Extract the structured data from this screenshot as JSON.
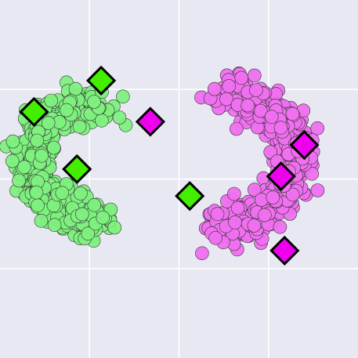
{
  "chart_data": {
    "type": "scatter",
    "title": "",
    "xlabel": "",
    "ylabel": "",
    "xlim": [
      -2.0,
      2.0
    ],
    "ylim": [
      -1.6,
      2.4
    ],
    "grid": true,
    "legend": "none",
    "x_gridlines": [
      -1.0,
      0.0,
      1.0
    ],
    "y_gridlines": [
      -0.6,
      0.4,
      1.4
    ],
    "colors": {
      "background": "#e8e8f2",
      "grid": "#ffffff",
      "class_a": "#7ef07e",
      "class_b": "#f070f0",
      "class_a_centroid": "#44ee00",
      "class_b_centroid": "#ee00ee",
      "edge": "#333333",
      "centroid_edge": "#000000"
    },
    "series": [
      {
        "name": "class-a",
        "shape": "two-moons-upper",
        "arc_center": [
          -0.85,
          0.6
        ],
        "arc_radius": 0.8,
        "arc_start_deg": 0,
        "arc_end_deg": 180,
        "noise_sd": 0.12,
        "n_points": 450,
        "seed": 11
      },
      {
        "name": "class-b",
        "shape": "two-moons-lower",
        "arc_center": [
          0.4,
          0.6
        ],
        "arc_radius": 0.9,
        "arc_start_deg": 0,
        "arc_end_deg": 180,
        "noise_sd": 0.12,
        "n_points": 450,
        "seed": 23
      }
    ],
    "centroids": [
      {
        "series": "class-a",
        "x": -0.87,
        "y": 1.5
      },
      {
        "series": "class-a",
        "x": -1.62,
        "y": 1.15
      },
      {
        "series": "class-a",
        "x": -1.14,
        "y": 0.51
      },
      {
        "series": "class-a",
        "x": 0.12,
        "y": 0.21
      },
      {
        "series": "class-b",
        "x": -0.32,
        "y": 1.04
      },
      {
        "series": "class-b",
        "x": 1.4,
        "y": 0.78
      },
      {
        "series": "class-b",
        "x": 1.14,
        "y": 0.43
      },
      {
        "series": "class-b",
        "x": 1.18,
        "y": -0.4
      }
    ]
  }
}
